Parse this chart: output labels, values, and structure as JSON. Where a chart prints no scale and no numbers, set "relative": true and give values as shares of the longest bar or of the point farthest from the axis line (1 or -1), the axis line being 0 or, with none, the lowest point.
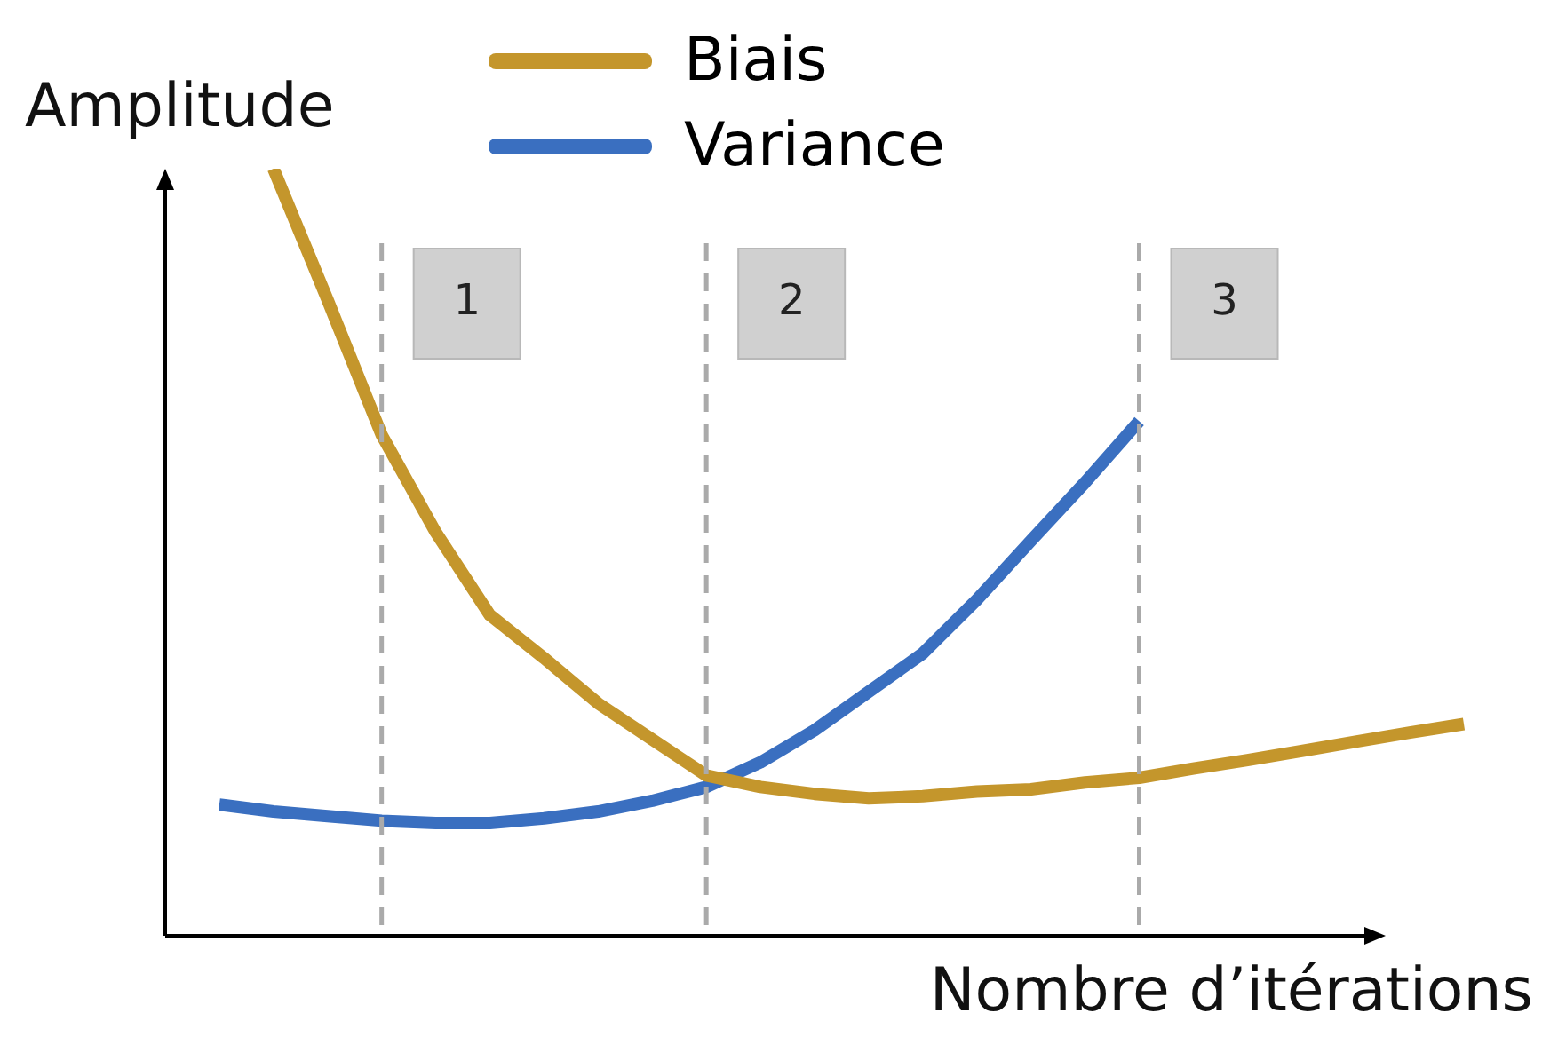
{
  "chart_data": {
    "type": "line",
    "relative": true,
    "xlabel": "Nombre d’itérations",
    "ylabel": "Amplitude",
    "legend": "top",
    "marker": "none",
    "line_style": "solid",
    "categories": [
      null,
      null,
      null,
      null,
      null,
      null,
      null,
      null,
      null,
      null,
      null,
      null,
      null,
      null,
      null,
      null,
      null,
      null,
      null,
      null,
      null,
      null,
      null,
      null,
      null
    ],
    "series": [
      {
        "name": "Biais",
        "color": "#c4962c",
        "values": [
          null,
          null,
          1,
          0.829,
          0.653,
          0.526,
          0.418,
          0.362,
          0.303,
          0.256,
          0.209,
          0.194,
          0.185,
          0.179,
          0.182,
          0.188,
          0.191,
          0.2,
          0.206,
          0.218,
          0.229,
          0.241,
          0.253,
          0.265,
          0.276
        ]
      },
      {
        "name": "Variance",
        "color": "#3a6fc0",
        "values": [
          null,
          0.171,
          0.162,
          0.156,
          0.15,
          0.147,
          0.147,
          0.153,
          0.162,
          0.176,
          0.194,
          0.226,
          0.268,
          0.318,
          0.368,
          0.438,
          0.515,
          0.591,
          0.671,
          null,
          null,
          null,
          null,
          null,
          null
        ]
      }
    ],
    "grid": "x",
    "annotations": [
      "1",
      "2",
      "3"
    ]
  }
}
